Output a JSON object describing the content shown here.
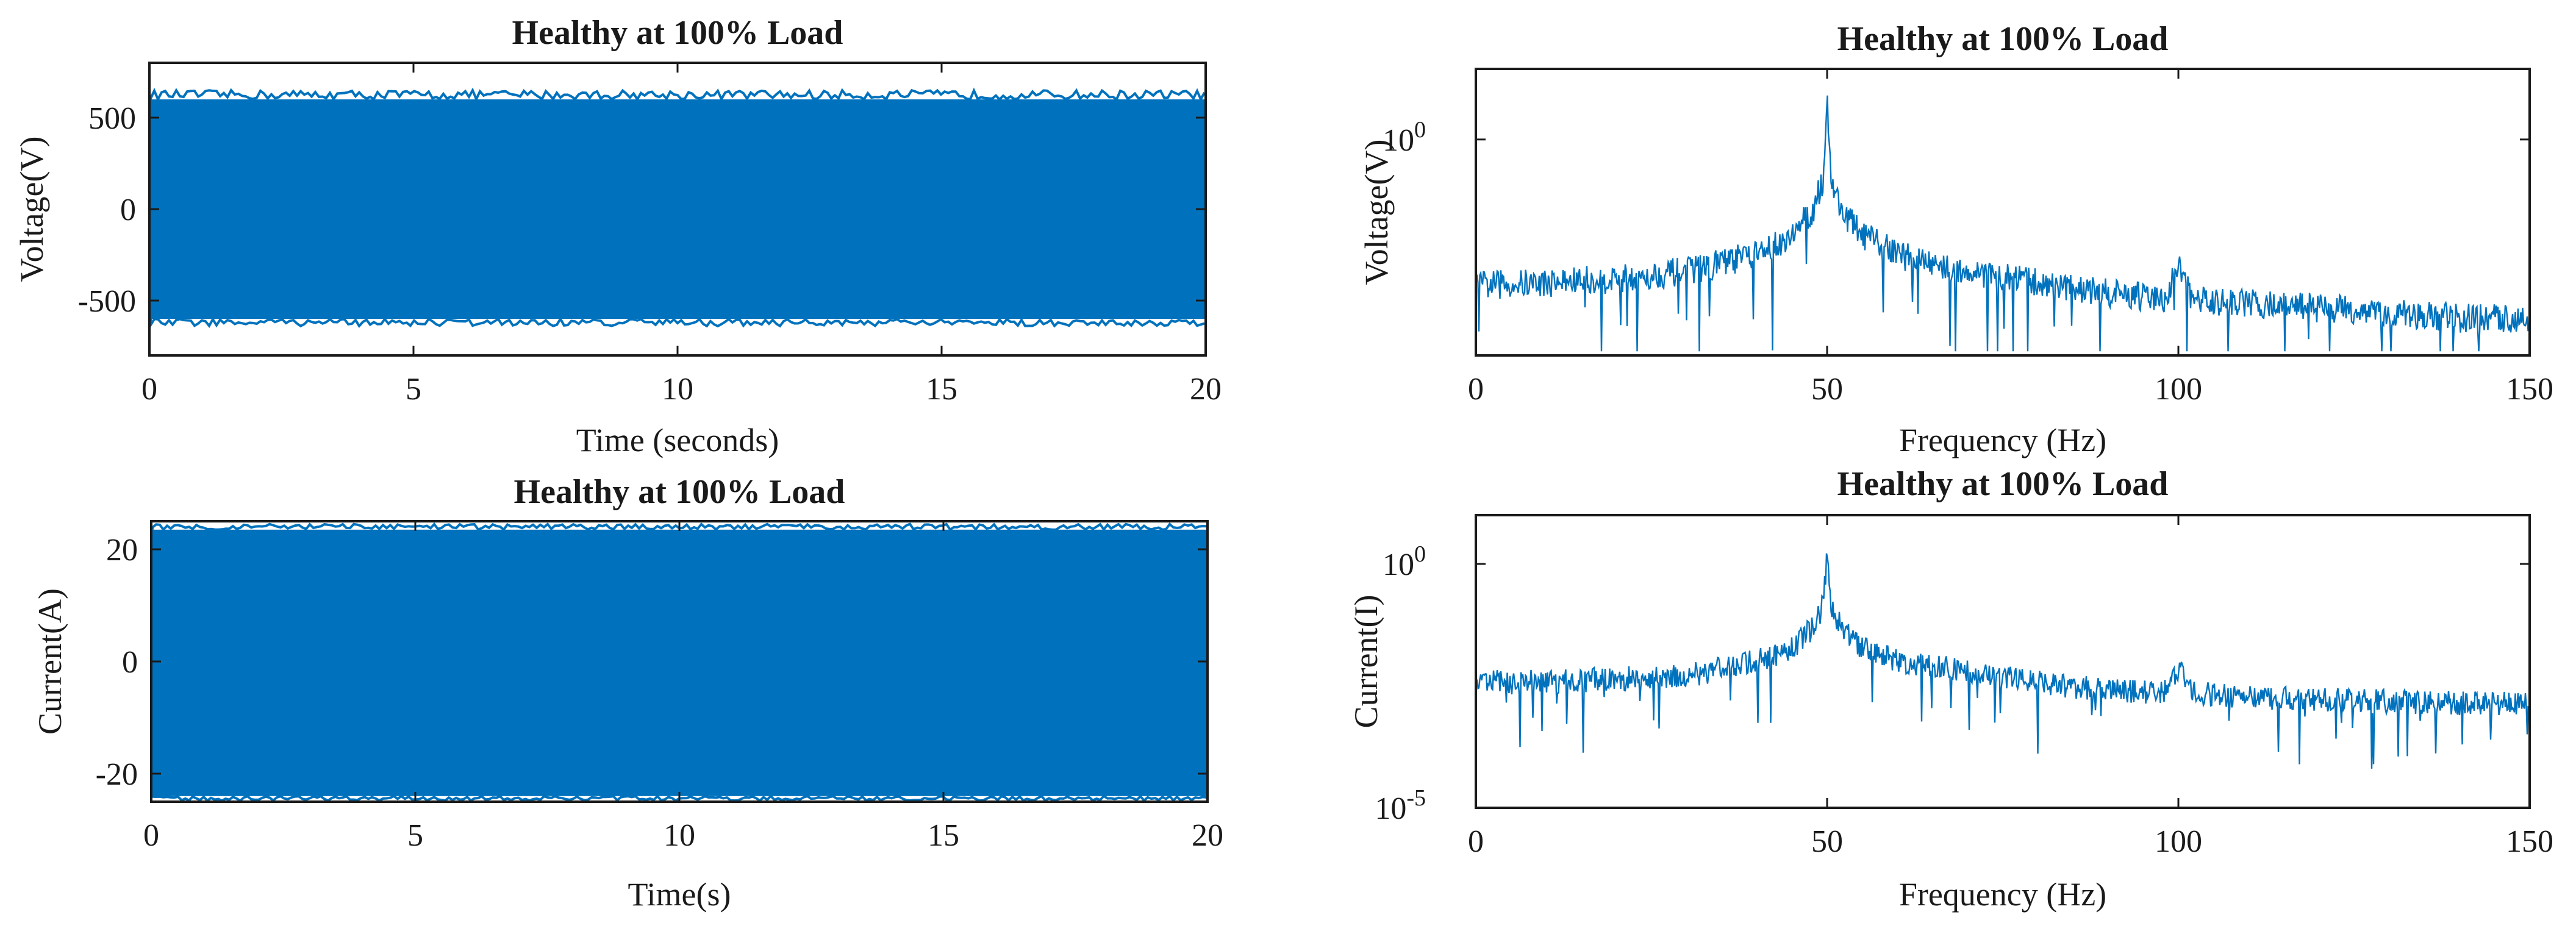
{
  "colors": {
    "series": "#0072BD",
    "axes": "#1a1a1a",
    "background": "#ffffff"
  },
  "chart_data": [
    {
      "id": "voltage_time",
      "type": "line",
      "title": "Healthy at 100% Load",
      "xlabel": "Time (seconds)",
      "ylabel": "Voltage(V)",
      "xlim": [
        0,
        20
      ],
      "ylim": [
        -800,
        800
      ],
      "xticks": [
        0,
        5,
        10,
        15,
        20
      ],
      "yticks": [
        -500,
        0,
        500
      ],
      "xtick_labels": [
        "0",
        "5",
        "10",
        "15",
        "20"
      ],
      "ytick_labels": [
        "-500",
        "0",
        "500"
      ],
      "yscale": "linear",
      "grid": false,
      "series": [
        {
          "envelope_upper": 600,
          "envelope_lower": -600,
          "peak_extent": [
            -640,
            650
          ],
          "shape": "dense sinusoid filling band"
        }
      ]
    },
    {
      "id": "voltage_spectrum",
      "type": "line",
      "title": "Healthy at 100% Load",
      "xlabel": "Frequency (Hz)",
      "ylabel": "Voltage(V)",
      "xlim": [
        0,
        150
      ],
      "xticks": [
        0,
        50,
        100,
        150
      ],
      "xtick_labels": [
        "0",
        "50",
        "100",
        "150"
      ],
      "ytick_labels": [
        "10^0"
      ],
      "yscale": "log",
      "grid": false,
      "series": [
        {
          "x": [
            0,
            10,
            20,
            30,
            40,
            45,
            48,
            49.5,
            50,
            50.5,
            52,
            55,
            60,
            70,
            80,
            90,
            98,
            100,
            102,
            110,
            120,
            130,
            140,
            150
          ],
          "y": [
            0.015,
            0.016,
            0.018,
            0.022,
            0.035,
            0.06,
            0.12,
            0.3,
            3.0,
            0.3,
            0.12,
            0.06,
            0.035,
            0.022,
            0.016,
            0.012,
            0.01,
            0.025,
            0.01,
            0.009,
            0.008,
            0.007,
            0.006,
            0.006
          ]
        }
      ]
    },
    {
      "id": "current_time",
      "type": "line",
      "title": "Healthy at 100% Load",
      "xlabel": "Time(s)",
      "ylabel": "Current(A)",
      "xlim": [
        0,
        20
      ],
      "ylim": [
        -25,
        25
      ],
      "xticks": [
        0,
        5,
        10,
        15,
        20
      ],
      "yticks": [
        -20,
        0,
        20
      ],
      "xtick_labels": [
        "0",
        "5",
        "10",
        "15",
        "20"
      ],
      "ytick_labels": [
        "-20",
        "0",
        "20"
      ],
      "yscale": "linear",
      "grid": false,
      "series": [
        {
          "envelope_upper": 23.5,
          "envelope_lower": -24,
          "peak_extent": [
            -24.8,
            24.5
          ],
          "shape": "dense sinusoid filling band"
        }
      ]
    },
    {
      "id": "current_spectrum",
      "type": "line",
      "title": "Healthy at 100% Load",
      "xlabel": "Frequency (Hz)",
      "ylabel": "Current(I)",
      "xlim": [
        0,
        150
      ],
      "ylim": [
        1e-05,
        10
      ],
      "xticks": [
        0,
        50,
        100,
        150
      ],
      "xtick_labels": [
        "0",
        "50",
        "100",
        "150"
      ],
      "ytick_labels": [
        "10^0",
        "10^-5"
      ],
      "yscale": "log",
      "grid": false,
      "series": [
        {
          "x": [
            0,
            10,
            20,
            30,
            40,
            45,
            48,
            49.5,
            50,
            50.5,
            52,
            55,
            60,
            70,
            80,
            90,
            98,
            100,
            102,
            110,
            120,
            130,
            140,
            150
          ],
          "y": [
            0.003,
            0.003,
            0.0035,
            0.004,
            0.008,
            0.015,
            0.04,
            0.12,
            1.5,
            0.12,
            0.04,
            0.015,
            0.008,
            0.005,
            0.003,
            0.002,
            0.0018,
            0.006,
            0.0018,
            0.0015,
            0.0013,
            0.0012,
            0.0011,
            0.0011
          ]
        }
      ]
    }
  ]
}
